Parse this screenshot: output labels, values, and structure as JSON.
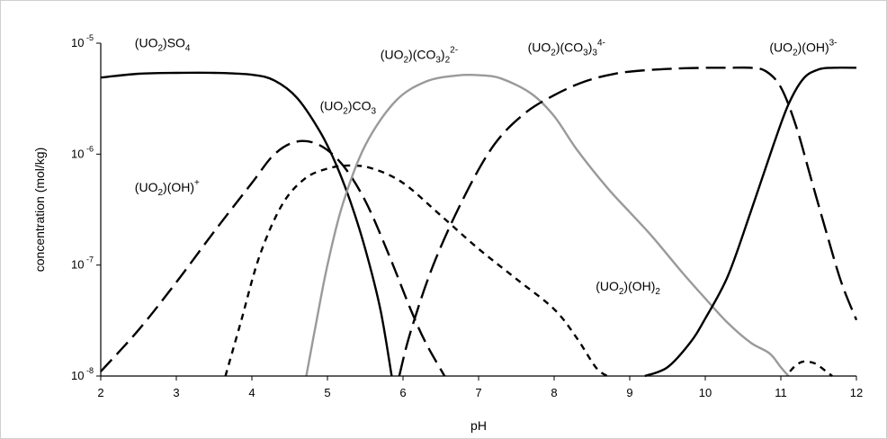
{
  "chart_data": {
    "type": "line",
    "title": "",
    "xlabel": "pH",
    "ylabel": "concentration (mol/kg)",
    "xlim": [
      2,
      12
    ],
    "ylim": [
      1e-08,
      1e-05
    ],
    "yscale": "log",
    "grid": false,
    "x_ticks": [
      "2",
      "3",
      "4",
      "5",
      "6",
      "7",
      "8",
      "9",
      "10",
      "11",
      "12"
    ],
    "y_ticks": [
      {
        "value": 1e-05,
        "base": "10",
        "exp": "-5"
      },
      {
        "value": 1e-06,
        "base": "10",
        "exp": "-6"
      },
      {
        "value": 1e-07,
        "base": "10",
        "exp": "-7"
      },
      {
        "value": 1e-08,
        "base": "10",
        "exp": "-8"
      }
    ],
    "series": [
      {
        "name": "(UO2)SO4",
        "label_parts": [
          {
            "t": "(UO"
          },
          {
            "t": "2",
            "sub": true
          },
          {
            "t": ")SO"
          },
          {
            "t": "4",
            "sub": true
          }
        ],
        "label_pos": [
          2.45,
          9.2e-06
        ],
        "color": "#000000",
        "dash": "solid",
        "points": [
          [
            2.0,
            4.9e-06
          ],
          [
            2.5,
            5.3e-06
          ],
          [
            3.0,
            5.4e-06
          ],
          [
            3.5,
            5.4e-06
          ],
          [
            4.0,
            5.2e-06
          ],
          [
            4.3,
            4.6e-06
          ],
          [
            4.6,
            3.2e-06
          ],
          [
            4.9,
            1.6e-06
          ],
          [
            5.1,
            8.5e-07
          ],
          [
            5.3,
            3.8e-07
          ],
          [
            5.5,
            1.4e-07
          ],
          [
            5.7,
            4e-08
          ],
          [
            5.85,
            1e-08
          ]
        ]
      },
      {
        "name": "(UO2)(OH)+",
        "label_parts": [
          {
            "t": "(UO"
          },
          {
            "t": "2",
            "sub": true
          },
          {
            "t": ")(OH)"
          },
          {
            "t": "+",
            "sup": true
          }
        ],
        "label_pos": [
          2.45,
          4.6e-07
        ],
        "color": "#000000",
        "dash": "18,8",
        "points": [
          [
            2.0,
            1.1e-08
          ],
          [
            2.5,
            2.6e-08
          ],
          [
            3.0,
            7e-08
          ],
          [
            3.5,
            2e-07
          ],
          [
            4.0,
            5.5e-07
          ],
          [
            4.3,
            1e-06
          ],
          [
            4.6,
            1.3e-06
          ],
          [
            4.9,
            1.2e-06
          ],
          [
            5.2,
            8e-07
          ],
          [
            5.5,
            3.8e-07
          ],
          [
            5.8,
            1.3e-07
          ],
          [
            6.1,
            4e-08
          ],
          [
            6.3,
            2e-08
          ],
          [
            6.55,
            1e-08
          ]
        ]
      },
      {
        "name": "(UO2)CO3",
        "label_parts": [
          {
            "t": "(UO"
          },
          {
            "t": "2",
            "sub": true
          },
          {
            "t": ")CO"
          },
          {
            "t": "3",
            "sub": true
          }
        ],
        "label_pos": [
          4.9,
          2.5e-06
        ],
        "color": "#000000",
        "dash": "7,6",
        "points": [
          [
            3.65,
            1e-08
          ],
          [
            3.85,
            3e-08
          ],
          [
            4.1,
            1.2e-07
          ],
          [
            4.4,
            3.5e-07
          ],
          [
            4.7,
            6e-07
          ],
          [
            5.0,
            7.4e-07
          ],
          [
            5.3,
            7.9e-07
          ],
          [
            5.6,
            7.4e-07
          ],
          [
            6.0,
            5.5e-07
          ],
          [
            6.5,
            2.8e-07
          ],
          [
            7.0,
            1.4e-07
          ],
          [
            7.5,
            7.5e-08
          ],
          [
            8.0,
            4e-08
          ],
          [
            8.3,
            2.2e-08
          ],
          [
            8.55,
            1.2e-08
          ],
          [
            8.7,
            1e-08
          ]
        ]
      },
      {
        "name": "(UO2)(CO3)2 2-",
        "label_parts": [
          {
            "t": "(UO"
          },
          {
            "t": "2",
            "sub": true
          },
          {
            "t": ")(CO"
          },
          {
            "t": "3",
            "sub": true
          },
          {
            "t": ")"
          },
          {
            "t": "2",
            "sub": true
          },
          {
            "t": "2-",
            "sup": true
          }
        ],
        "label_pos": [
          5.7,
          7.2e-06
        ],
        "color": "#9a9a9a",
        "dash": "solid",
        "points": [
          [
            4.72,
            1e-08
          ],
          [
            4.85,
            3e-08
          ],
          [
            5.0,
            1e-07
          ],
          [
            5.2,
            3.5e-07
          ],
          [
            5.5,
            1.2e-06
          ],
          [
            5.9,
            3e-06
          ],
          [
            6.3,
            4.5e-06
          ],
          [
            6.7,
            5.1e-06
          ],
          [
            7.0,
            5.15e-06
          ],
          [
            7.3,
            4.8e-06
          ],
          [
            7.7,
            3.5e-06
          ],
          [
            8.0,
            2.2e-06
          ],
          [
            8.3,
            1.1e-06
          ],
          [
            8.7,
            5e-07
          ],
          [
            9.0,
            3e-07
          ],
          [
            9.3,
            1.8e-07
          ],
          [
            9.7,
            8.5e-08
          ],
          [
            10.0,
            5e-08
          ],
          [
            10.3,
            3e-08
          ],
          [
            10.6,
            2e-08
          ],
          [
            10.85,
            1.6e-08
          ],
          [
            11.0,
            1.2e-08
          ],
          [
            11.1,
            1e-08
          ]
        ]
      },
      {
        "name": "(UO2)(CO3)3 4-",
        "label_parts": [
          {
            "t": "(UO"
          },
          {
            "t": "2",
            "sub": true
          },
          {
            "t": ")(CO"
          },
          {
            "t": "3",
            "sub": true
          },
          {
            "t": ")"
          },
          {
            "t": "3",
            "sub": true
          },
          {
            "t": "4-",
            "sup": true
          }
        ],
        "label_pos": [
          7.65,
          8.4e-06
        ],
        "color": "#000000",
        "dash": "22,8",
        "points": [
          [
            5.95,
            1e-08
          ],
          [
            6.1,
            2.5e-08
          ],
          [
            6.4,
            1e-07
          ],
          [
            6.8,
            4e-07
          ],
          [
            7.2,
            1.2e-06
          ],
          [
            7.6,
            2.3e-06
          ],
          [
            8.0,
            3.4e-06
          ],
          [
            8.4,
            4.5e-06
          ],
          [
            8.8,
            5.3e-06
          ],
          [
            9.2,
            5.7e-06
          ],
          [
            9.6,
            5.9e-06
          ],
          [
            10.0,
            6e-06
          ],
          [
            10.3,
            6e-06
          ],
          [
            10.6,
            6e-06
          ],
          [
            10.8,
            5.6e-06
          ],
          [
            11.0,
            4e-06
          ],
          [
            11.2,
            1.8e-06
          ],
          [
            11.4,
            6e-07
          ],
          [
            11.6,
            2e-07
          ],
          [
            11.8,
            7e-08
          ],
          [
            12.0,
            3.2e-08
          ]
        ]
      },
      {
        "name": "(UO2)(OH)3-",
        "label_parts": [
          {
            "t": "(UO"
          },
          {
            "t": "2",
            "sub": true
          },
          {
            "t": ")(OH)"
          },
          {
            "t": "3-",
            "sup": true
          }
        ],
        "label_pos": [
          10.85,
          8.4e-06
        ],
        "color": "#000000",
        "dash": "solid",
        "points": [
          [
            9.2,
            1e-08
          ],
          [
            9.5,
            1.2e-08
          ],
          [
            9.8,
            2e-08
          ],
          [
            10.0,
            3.3e-08
          ],
          [
            10.3,
            8e-08
          ],
          [
            10.6,
            3e-07
          ],
          [
            10.9,
            1.2e-06
          ],
          [
            11.1,
            2.8e-06
          ],
          [
            11.3,
            4.8e-06
          ],
          [
            11.5,
            5.8e-06
          ],
          [
            11.7,
            6e-06
          ],
          [
            12.0,
            6e-06
          ]
        ]
      },
      {
        "name": "(UO2)(OH)2",
        "label_parts": [
          {
            "t": "(UO"
          },
          {
            "t": "2",
            "sub": true
          },
          {
            "t": ")(OH)"
          },
          {
            "t": "2",
            "sub": true
          }
        ],
        "label_pos": [
          8.55,
          5.9e-08
        ],
        "color": "#000000",
        "dash": "7,6",
        "points": [
          [
            11.12,
            1.1e-08
          ],
          [
            11.2,
            1.25e-08
          ],
          [
            11.3,
            1.35e-08
          ],
          [
            11.45,
            1.3e-08
          ],
          [
            11.6,
            1.1e-08
          ],
          [
            11.68,
            1e-08
          ]
        ]
      }
    ]
  }
}
